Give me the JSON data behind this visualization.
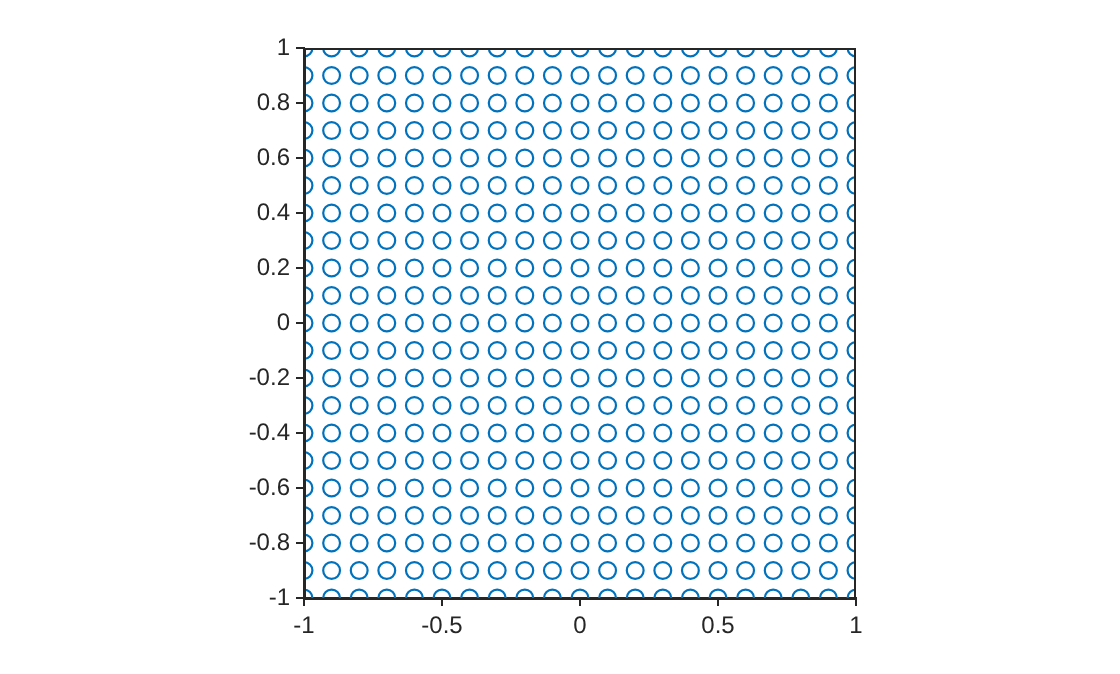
{
  "chart_data": {
    "type": "scatter",
    "marker": "circle",
    "xlim": [
      -1,
      1
    ],
    "ylim": [
      -1,
      1
    ],
    "xticks": [
      -1,
      -0.5,
      0,
      0.5,
      1
    ],
    "yticks": [
      -1,
      -0.8,
      -0.6,
      -0.4,
      -0.2,
      0,
      0.2,
      0.4,
      0.6,
      0.8,
      1
    ],
    "series": [
      {
        "color": "#0072bd",
        "x": [
          -1,
          -0.9,
          -0.8,
          -0.7,
          -0.6,
          -0.5,
          -0.4,
          -0.3,
          -0.2,
          -0.1,
          0,
          0.1,
          0.2,
          0.3,
          0.4,
          0.5,
          0.6,
          0.7,
          0.8,
          0.9,
          1,
          -1,
          -0.9,
          -0.8,
          -0.7,
          -0.6,
          -0.5,
          -0.4,
          -0.3,
          -0.2,
          -0.1,
          0,
          0.1,
          0.2,
          0.3,
          0.4,
          0.5,
          0.6,
          0.7,
          0.8,
          0.9,
          1,
          -1,
          -0.9,
          -0.8,
          -0.7,
          -0.6,
          -0.5,
          -0.4,
          -0.3,
          -0.2,
          -0.1,
          0,
          0.1,
          0.2,
          0.3,
          0.4,
          0.5,
          0.6,
          0.7,
          0.8,
          0.9,
          1,
          -1,
          -0.9,
          -0.8,
          -0.7,
          -0.6,
          -0.5,
          -0.4,
          -0.3,
          -0.2,
          -0.1,
          0,
          0.1,
          0.2,
          0.3,
          0.4,
          0.5,
          0.6,
          0.7,
          0.8,
          0.9,
          1,
          -1,
          -0.9,
          -0.8,
          -0.7,
          -0.6,
          -0.5,
          -0.4,
          -0.3,
          -0.2,
          -0.1,
          0,
          0.1,
          0.2,
          0.3,
          0.4,
          0.5,
          0.6,
          0.7,
          0.8,
          0.9,
          1,
          -1,
          -0.9,
          -0.8,
          -0.7,
          -0.6,
          -0.5,
          -0.4,
          -0.3,
          -0.2,
          -0.1,
          0,
          0.1,
          0.2,
          0.3,
          0.4,
          0.5,
          0.6,
          0.7,
          0.8,
          0.9,
          1,
          -1,
          -0.9,
          -0.8,
          -0.7,
          -0.6,
          -0.5,
          -0.4,
          -0.3,
          -0.2,
          -0.1,
          0,
          0.1,
          0.2,
          0.3,
          0.4,
          0.5,
          0.6,
          0.7,
          0.8,
          0.9,
          1,
          -1,
          -0.9,
          -0.8,
          -0.7,
          -0.6,
          -0.5,
          -0.4,
          -0.3,
          -0.2,
          -0.1,
          0,
          0.1,
          0.2,
          0.3,
          0.4,
          0.5,
          0.6,
          0.7,
          0.8,
          0.9,
          1,
          -1,
          -0.9,
          -0.8,
          -0.7,
          -0.6,
          -0.5,
          -0.4,
          -0.3,
          -0.2,
          -0.1,
          0,
          0.1,
          0.2,
          0.3,
          0.4,
          0.5,
          0.6,
          0.7,
          0.8,
          0.9,
          1,
          -1,
          -0.9,
          -0.8,
          -0.7,
          -0.6,
          -0.5,
          -0.4,
          -0.3,
          -0.2,
          -0.1,
          0,
          0.1,
          0.2,
          0.3,
          0.4,
          0.5,
          0.6,
          0.7,
          0.8,
          0.9,
          1,
          -1,
          -0.9,
          -0.8,
          -0.7,
          -0.6,
          -0.5,
          -0.4,
          -0.3,
          -0.2,
          -0.1,
          0,
          0.1,
          0.2,
          0.3,
          0.4,
          0.5,
          0.6,
          0.7,
          0.8,
          0.9,
          1,
          -1,
          -0.9,
          -0.8,
          -0.7,
          -0.6,
          -0.5,
          -0.4,
          -0.3,
          -0.2,
          -0.1,
          0,
          0.1,
          0.2,
          0.3,
          0.4,
          0.5,
          0.6,
          0.7,
          0.8,
          0.9,
          1,
          -1,
          -0.9,
          -0.8,
          -0.7,
          -0.6,
          -0.5,
          -0.4,
          -0.3,
          -0.2,
          -0.1,
          0,
          0.1,
          0.2,
          0.3,
          0.4,
          0.5,
          0.6,
          0.7,
          0.8,
          0.9,
          1,
          -1,
          -0.9,
          -0.8,
          -0.7,
          -0.6,
          -0.5,
          -0.4,
          -0.3,
          -0.2,
          -0.1,
          0,
          0.1,
          0.2,
          0.3,
          0.4,
          0.5,
          0.6,
          0.7,
          0.8,
          0.9,
          1,
          -1,
          -0.9,
          -0.8,
          -0.7,
          -0.6,
          -0.5,
          -0.4,
          -0.3,
          -0.2,
          -0.1,
          0,
          0.1,
          0.2,
          0.3,
          0.4,
          0.5,
          0.6,
          0.7,
          0.8,
          0.9,
          1,
          -1,
          -0.9,
          -0.8,
          -0.7,
          -0.6,
          -0.5,
          -0.4,
          -0.3,
          -0.2,
          -0.1,
          0,
          0.1,
          0.2,
          0.3,
          0.4,
          0.5,
          0.6,
          0.7,
          0.8,
          0.9,
          1,
          -1,
          -0.9,
          -0.8,
          -0.7,
          -0.6,
          -0.5,
          -0.4,
          -0.3,
          -0.2,
          -0.1,
          0,
          0.1,
          0.2,
          0.3,
          0.4,
          0.5,
          0.6,
          0.7,
          0.8,
          0.9,
          1,
          -1,
          -0.9,
          -0.8,
          -0.7,
          -0.6,
          -0.5,
          -0.4,
          -0.3,
          -0.2,
          -0.1,
          0,
          0.1,
          0.2,
          0.3,
          0.4,
          0.5,
          0.6,
          0.7,
          0.8,
          0.9,
          1,
          -1,
          -0.9,
          -0.8,
          -0.7,
          -0.6,
          -0.5,
          -0.4,
          -0.3,
          -0.2,
          -0.1,
          0,
          0.1,
          0.2,
          0.3,
          0.4,
          0.5,
          0.6,
          0.7,
          0.8,
          0.9,
          1,
          -1,
          -0.9,
          -0.8,
          -0.7,
          -0.6,
          -0.5,
          -0.4,
          -0.3,
          -0.2,
          -0.1,
          0,
          0.1,
          0.2,
          0.3,
          0.4,
          0.5,
          0.6,
          0.7,
          0.8,
          0.9,
          1,
          -1,
          -0.9,
          -0.8,
          -0.7,
          -0.6,
          -0.5,
          -0.4,
          -0.3,
          -0.2,
          -0.1,
          0,
          0.1,
          0.2,
          0.3,
          0.4,
          0.5,
          0.6,
          0.7,
          0.8,
          0.9,
          1
        ],
        "values": [
          -1,
          -1,
          -1,
          -1,
          -1,
          -1,
          -1,
          -1,
          -1,
          -1,
          -1,
          -1,
          -1,
          -1,
          -1,
          -1,
          -1,
          -1,
          -1,
          -1,
          -1,
          -0.9,
          -0.9,
          -0.9,
          -0.9,
          -0.9,
          -0.9,
          -0.9,
          -0.9,
          -0.9,
          -0.9,
          -0.9,
          -0.9,
          -0.9,
          -0.9,
          -0.9,
          -0.9,
          -0.9,
          -0.9,
          -0.9,
          -0.9,
          -0.9,
          -0.8,
          -0.8,
          -0.8,
          -0.8,
          -0.8,
          -0.8,
          -0.8,
          -0.8,
          -0.8,
          -0.8,
          -0.8,
          -0.8,
          -0.8,
          -0.8,
          -0.8,
          -0.8,
          -0.8,
          -0.8,
          -0.8,
          -0.8,
          -0.8,
          -0.7,
          -0.7,
          -0.7,
          -0.7,
          -0.7,
          -0.7,
          -0.7,
          -0.7,
          -0.7,
          -0.7,
          -0.7,
          -0.7,
          -0.7,
          -0.7,
          -0.7,
          -0.7,
          -0.7,
          -0.7,
          -0.7,
          -0.7,
          -0.7,
          -0.6,
          -0.6,
          -0.6,
          -0.6,
          -0.6,
          -0.6,
          -0.6,
          -0.6,
          -0.6,
          -0.6,
          -0.6,
          -0.6,
          -0.6,
          -0.6,
          -0.6,
          -0.6,
          -0.6,
          -0.6,
          -0.6,
          -0.6,
          -0.6,
          -0.5,
          -0.5,
          -0.5,
          -0.5,
          -0.5,
          -0.5,
          -0.5,
          -0.5,
          -0.5,
          -0.5,
          -0.5,
          -0.5,
          -0.5,
          -0.5,
          -0.5,
          -0.5,
          -0.5,
          -0.5,
          -0.5,
          -0.5,
          -0.5,
          -0.4,
          -0.4,
          -0.4,
          -0.4,
          -0.4,
          -0.4,
          -0.4,
          -0.4,
          -0.4,
          -0.4,
          -0.4,
          -0.4,
          -0.4,
          -0.4,
          -0.4,
          -0.4,
          -0.4,
          -0.4,
          -0.4,
          -0.4,
          -0.4,
          -0.3,
          -0.3,
          -0.3,
          -0.3,
          -0.3,
          -0.3,
          -0.3,
          -0.3,
          -0.3,
          -0.3,
          -0.3,
          -0.3,
          -0.3,
          -0.3,
          -0.3,
          -0.3,
          -0.3,
          -0.3,
          -0.3,
          -0.3,
          -0.3,
          -0.2,
          -0.2,
          -0.2,
          -0.2,
          -0.2,
          -0.2,
          -0.2,
          -0.2,
          -0.2,
          -0.2,
          -0.2,
          -0.2,
          -0.2,
          -0.2,
          -0.2,
          -0.2,
          -0.2,
          -0.2,
          -0.2,
          -0.2,
          -0.2,
          -0.1,
          -0.1,
          -0.1,
          -0.1,
          -0.1,
          -0.1,
          -0.1,
          -0.1,
          -0.1,
          -0.1,
          -0.1,
          -0.1,
          -0.1,
          -0.1,
          -0.1,
          -0.1,
          -0.1,
          -0.1,
          -0.1,
          -0.1,
          -0.1,
          0,
          0,
          0,
          0,
          0,
          0,
          0,
          0,
          0,
          0,
          0,
          0,
          0,
          0,
          0,
          0,
          0,
          0,
          0,
          0,
          0,
          0.1,
          0.1,
          0.1,
          0.1,
          0.1,
          0.1,
          0.1,
          0.1,
          0.1,
          0.1,
          0.1,
          0.1,
          0.1,
          0.1,
          0.1,
          0.1,
          0.1,
          0.1,
          0.1,
          0.1,
          0.1,
          0.2,
          0.2,
          0.2,
          0.2,
          0.2,
          0.2,
          0.2,
          0.2,
          0.2,
          0.2,
          0.2,
          0.2,
          0.2,
          0.2,
          0.2,
          0.2,
          0.2,
          0.2,
          0.2,
          0.2,
          0.2,
          0.3,
          0.3,
          0.3,
          0.3,
          0.3,
          0.3,
          0.3,
          0.3,
          0.3,
          0.3,
          0.3,
          0.3,
          0.3,
          0.3,
          0.3,
          0.3,
          0.3,
          0.3,
          0.3,
          0.3,
          0.3,
          0.4,
          0.4,
          0.4,
          0.4,
          0.4,
          0.4,
          0.4,
          0.4,
          0.4,
          0.4,
          0.4,
          0.4,
          0.4,
          0.4,
          0.4,
          0.4,
          0.4,
          0.4,
          0.4,
          0.4,
          0.4,
          0.5,
          0.5,
          0.5,
          0.5,
          0.5,
          0.5,
          0.5,
          0.5,
          0.5,
          0.5,
          0.5,
          0.5,
          0.5,
          0.5,
          0.5,
          0.5,
          0.5,
          0.5,
          0.5,
          0.5,
          0.5,
          0.6,
          0.6,
          0.6,
          0.6,
          0.6,
          0.6,
          0.6,
          0.6,
          0.6,
          0.6,
          0.6,
          0.6,
          0.6,
          0.6,
          0.6,
          0.6,
          0.6,
          0.6,
          0.6,
          0.6,
          0.6,
          0.7,
          0.7,
          0.7,
          0.7,
          0.7,
          0.7,
          0.7,
          0.7,
          0.7,
          0.7,
          0.7,
          0.7,
          0.7,
          0.7,
          0.7,
          0.7,
          0.7,
          0.7,
          0.7,
          0.7,
          0.7,
          0.8,
          0.8,
          0.8,
          0.8,
          0.8,
          0.8,
          0.8,
          0.8,
          0.8,
          0.8,
          0.8,
          0.8,
          0.8,
          0.8,
          0.8,
          0.8,
          0.8,
          0.8,
          0.8,
          0.8,
          0.8,
          0.9,
          0.9,
          0.9,
          0.9,
          0.9,
          0.9,
          0.9,
          0.9,
          0.9,
          0.9,
          0.9,
          0.9,
          0.9,
          0.9,
          0.9,
          0.9,
          0.9,
          0.9,
          0.9,
          0.9,
          0.9,
          1,
          1,
          1,
          1,
          1,
          1,
          1,
          1,
          1,
          1,
          1,
          1,
          1,
          1,
          1,
          1,
          1,
          1,
          1,
          1,
          1
        ]
      }
    ]
  }
}
